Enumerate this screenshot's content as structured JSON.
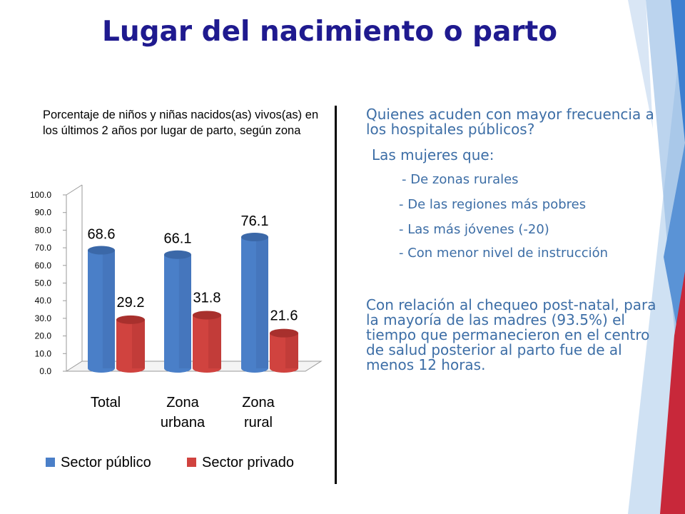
{
  "slide": {
    "title": "Lugar del nacimiento o parto",
    "subtitle": "Porcentaje de niños y niñas nacidos(as) vivos(as) en los últimos 2 años por lugar de parto, según zona",
    "question": "Quienes acuden con mayor frecuencia a los hospitales públicos?",
    "lead": "Las mujeres que:",
    "items": [
      "- De zonas rurales",
      "- De las regiones más pobres",
      "- Las más jóvenes (-20)",
      "- Con menor nivel de instrucción"
    ],
    "paragraph": "Con relación al chequeo post-natal, para la mayoría de las madres (93.5%) el tiempo que permanecieron en el centro de salud posterior al parto fue de al menos 12 horas."
  },
  "chart_data": {
    "type": "bar",
    "title": "",
    "categories": [
      [
        "Total"
      ],
      [
        "Zona",
        "urbana"
      ],
      [
        "Zona",
        "rural"
      ]
    ],
    "series": [
      {
        "name": "Sector público",
        "values": [
          68.6,
          66.1,
          76.1
        ],
        "color": "#4a7fc8"
      },
      {
        "name": "Sector privado",
        "values": [
          29.2,
          31.8,
          21.6
        ],
        "color": "#d0433f"
      }
    ],
    "ylim": [
      0,
      100
    ],
    "yticks": [
      "0.0",
      "10.0",
      "20.0",
      "30.0",
      "40.0",
      "50.0",
      "60.0",
      "70.0",
      "80.0",
      "90.0",
      "100.0"
    ],
    "grid": false,
    "legend": "bottom",
    "style": "3d-cylinder"
  }
}
